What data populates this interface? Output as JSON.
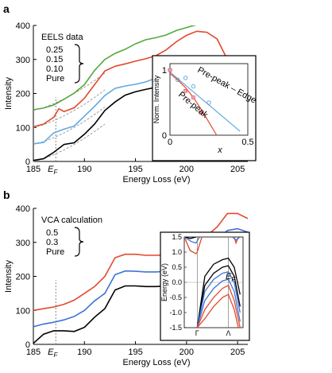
{
  "colors": {
    "green": "#56a83c",
    "red": "#e2492c",
    "blue": "#3f73d6",
    "lightblue": "#62a8e0",
    "black": "#000000",
    "gray": "#888888"
  },
  "chart_data": [
    {
      "type": "line",
      "panel": "a",
      "legend_title": "EELS data",
      "xlabel": "Energy Loss (eV)",
      "ylabel": "Intensity",
      "xlim": [
        185,
        206
      ],
      "ylim": [
        0,
        400
      ],
      "xticks": [
        "185",
        "190",
        "195",
        "200",
        "205"
      ],
      "xtick_values": [
        185,
        190,
        195,
        200,
        205
      ],
      "yticks": [
        "0",
        "100",
        "200",
        "300",
        "400"
      ],
      "ytick_values": [
        0,
        100,
        200,
        300,
        400
      ],
      "ef_label": "E",
      "ef_sub": "F",
      "ef_x": 187.2,
      "series": [
        {
          "name": "0.25",
          "color": "#56a83c",
          "x": [
            185,
            186,
            187,
            188,
            189,
            190,
            191,
            192,
            193,
            194,
            195,
            196,
            197,
            198,
            199,
            200,
            201
          ],
          "y": [
            152,
            157,
            166,
            183,
            201,
            226,
            268,
            300,
            318,
            330,
            346,
            358,
            364,
            372,
            385,
            394,
            402
          ]
        },
        {
          "name": "0.15",
          "color": "#e2492c",
          "x": [
            185,
            186,
            187,
            187.5,
            188,
            189,
            190,
            191,
            192,
            193,
            194,
            195,
            196,
            197,
            198,
            199,
            200,
            201,
            202,
            203,
            204,
            205
          ],
          "y": [
            102,
            110,
            130,
            155,
            147,
            158,
            186,
            226,
            266,
            280,
            287,
            295,
            302,
            311,
            328,
            352,
            371,
            383,
            380,
            360,
            300,
            265
          ]
        },
        {
          "name": "0.10",
          "color": "#62a8e0",
          "x": [
            185,
            186,
            187,
            188,
            189,
            190,
            191,
            192,
            193,
            194,
            195,
            196,
            197,
            198,
            199,
            200,
            201,
            202,
            203,
            204,
            205
          ],
          "y": [
            52,
            56,
            84,
            95,
            104,
            133,
            162,
            194,
            215,
            222,
            227,
            234,
            245,
            272,
            295,
            305,
            310,
            305,
            280,
            255,
            235
          ]
        },
        {
          "name": "Pure",
          "color": "#000000",
          "x": [
            185,
            186,
            187,
            188,
            189,
            190,
            191,
            192,
            193,
            194,
            195,
            196,
            197,
            198,
            199,
            200,
            201,
            202,
            203,
            204,
            205
          ],
          "y": [
            3,
            8,
            27,
            50,
            55,
            80,
            110,
            150,
            175,
            195,
            205,
            212,
            218,
            240,
            262,
            278,
            283,
            280,
            262,
            240,
            220
          ]
        }
      ],
      "dashed_backgrounds": [
        {
          "color": "#888888",
          "x": [
            185,
            186,
            187,
            188,
            189,
            190,
            191,
            192
          ],
          "y": [
            0,
            8,
            20,
            34,
            50,
            68,
            88,
            110
          ]
        },
        {
          "color": "#888888",
          "x": [
            185,
            186,
            187,
            188,
            189,
            190,
            191,
            192
          ],
          "y": [
            50,
            58,
            70,
            84,
            100,
            118,
            138,
            160
          ]
        },
        {
          "color": "#888888",
          "x": [
            185,
            186,
            187,
            188,
            189,
            190,
            191,
            192
          ],
          "y": [
            100,
            108,
            120,
            134,
            150,
            168,
            188,
            210
          ]
        },
        {
          "color": "#888888",
          "x": [
            185,
            186,
            187,
            188,
            189,
            190,
            191,
            192
          ],
          "y": [
            150,
            158,
            170,
            184,
            200,
            218,
            238,
            260
          ]
        }
      ],
      "inset": {
        "xlabel": "x",
        "ylabel": "Norm. Intensity",
        "xlim": [
          0,
          0.5
        ],
        "ylim": [
          0,
          1.1
        ],
        "xticks": [
          "0",
          "0.5"
        ],
        "xtick_values": [
          0,
          0.5
        ],
        "yticks": [
          "0",
          "1"
        ],
        "ytick_values": [
          0,
          1
        ],
        "series": [
          {
            "name": "Pre-peak – Edge",
            "color": "#3f73d6",
            "marker": "circle",
            "x": [
              0,
              0.05,
              0.1,
              0.15,
              0.25
            ],
            "y": [
              1.0,
              0.85,
              0.88,
              0.75,
              0.5
            ],
            "fit_x": [
              0,
              0.45
            ],
            "fit_y": [
              0.97,
              0.06
            ]
          },
          {
            "name": "Pre-peak",
            "color": "#e2492c",
            "marker": "square",
            "x": [
              0,
              0.1,
              0.15,
              0.2
            ],
            "y": [
              1.0,
              0.68,
              0.58,
              0.35
            ],
            "fit_x": [
              0,
              0.05,
              0.1,
              0.15,
              0.2,
              0.25,
              0.3
            ],
            "fit_y": [
              0.95,
              0.85,
              0.73,
              0.58,
              0.4,
              0.2,
              0.0
            ]
          }
        ]
      }
    },
    {
      "type": "line",
      "panel": "b",
      "legend_title": "VCA calculation",
      "xlabel": "Energy Loss (eV)",
      "ylabel": "Intensity",
      "xlim": [
        185,
        206
      ],
      "ylim": [
        0,
        400
      ],
      "xticks": [
        "185",
        "190",
        "195",
        "200",
        "205"
      ],
      "xtick_values": [
        185,
        190,
        195,
        200,
        205
      ],
      "yticks": [
        "0",
        "100",
        "200",
        "300",
        "400"
      ],
      "ytick_values": [
        0,
        100,
        200,
        300,
        400
      ],
      "ef_label": "E",
      "ef_sub": "F",
      "ef_x": 187.2,
      "series": [
        {
          "name": "0.5",
          "color": "#e2492c",
          "x": [
            185,
            186,
            187,
            188,
            189,
            190,
            191,
            192,
            193,
            194,
            195,
            196,
            197,
            198,
            199,
            200,
            201,
            202,
            203,
            204,
            205,
            206
          ],
          "y": [
            100,
            105,
            110,
            118,
            130,
            150,
            170,
            200,
            255,
            265,
            265,
            262,
            262,
            263,
            265,
            275,
            300,
            320,
            345,
            385,
            385,
            370
          ]
        },
        {
          "name": "0.3",
          "color": "#3f73d6",
          "x": [
            185,
            186,
            187,
            188,
            189,
            190,
            191,
            192,
            193,
            194,
            195,
            196,
            197,
            198,
            199,
            200,
            201,
            202,
            203,
            204,
            205,
            206
          ],
          "y": [
            52,
            60,
            65,
            72,
            82,
            100,
            128,
            150,
            205,
            216,
            215,
            213,
            213,
            215,
            218,
            228,
            250,
            280,
            305,
            335,
            340,
            330
          ]
        },
        {
          "name": "Pure",
          "color": "#000000",
          "x": [
            185,
            186,
            187,
            188,
            189,
            190,
            191,
            192,
            193,
            194,
            195,
            196,
            197,
            198,
            199,
            200,
            201,
            202,
            203,
            204,
            205,
            206
          ],
          "y": [
            3,
            30,
            40,
            40,
            38,
            50,
            80,
            105,
            160,
            172,
            172,
            170,
            170,
            172,
            175,
            185,
            205,
            235,
            265,
            290,
            295,
            285
          ]
        }
      ],
      "inset": {
        "xlabel": "",
        "ylabel": "Energy (eV)",
        "ylim": [
          -1.5,
          1.5
        ],
        "yticks": [
          "1.5",
          "1.0",
          "0.5",
          "0.0",
          "-0.5",
          "-1.0",
          "-1.5"
        ],
        "ytick_values": [
          1.5,
          1.0,
          0.5,
          0.0,
          -0.5,
          -1.0,
          -1.5
        ],
        "xticks": [
          "Γ",
          "Λ"
        ],
        "xtick_values": [
          0.22,
          0.75
        ],
        "ef_label": "E",
        "ef_sub": "F",
        "bands": [
          {
            "color": "#000000",
            "x": [
              0.22,
              0.35,
              0.5,
              0.65,
              0.75,
              0.85,
              0.95
            ],
            "y": [
              -1.5,
              0.2,
              0.6,
              0.75,
              0.8,
              0.5,
              -0.4
            ]
          },
          {
            "color": "#000000",
            "x": [
              0.22,
              0.35,
              0.5,
              0.65,
              0.75,
              0.85,
              0.95
            ],
            "y": [
              -1.5,
              -0.1,
              0.3,
              0.5,
              0.55,
              0.2,
              -0.8
            ]
          },
          {
            "color": "#3f73d6",
            "x": [
              0.22,
              0.35,
              0.5,
              0.65,
              0.75,
              0.85,
              0.95
            ],
            "y": [
              -1.5,
              -0.3,
              0.1,
              0.3,
              0.35,
              0.0,
              -1.0
            ]
          },
          {
            "color": "#3f73d6",
            "x": [
              0.22,
              0.35,
              0.5,
              0.65,
              0.75,
              0.85,
              0.95
            ],
            "y": [
              -1.5,
              -0.6,
              -0.2,
              0.05,
              0.1,
              -0.3,
              -1.3
            ]
          },
          {
            "color": "#e2492c",
            "x": [
              0.22,
              0.35,
              0.5,
              0.65,
              0.75,
              0.85,
              0.95
            ],
            "y": [
              -1.5,
              -0.9,
              -0.5,
              -0.2,
              -0.1,
              -0.6,
              -1.5
            ]
          },
          {
            "color": "#e2492c",
            "x": [
              0.22,
              0.35,
              0.5,
              0.65,
              0.75,
              0.85,
              0.92
            ],
            "y": [
              -1.5,
              -1.2,
              -0.8,
              -0.5,
              -0.4,
              -0.9,
              -1.5
            ]
          },
          {
            "color": "#e2492c",
            "x": [
              0.0,
              0.1,
              0.2,
              0.22,
              0.3
            ],
            "y": [
              1.5,
              1.05,
              0.95,
              1.0,
              1.5
            ]
          },
          {
            "color": "#3f73d6",
            "x": [
              0.0,
              0.12,
              0.2,
              0.26
            ],
            "y": [
              1.5,
              1.35,
              1.3,
              1.5
            ]
          },
          {
            "color": "#000000",
            "x": [
              0.02,
              0.1,
              0.2
            ],
            "y": [
              1.5,
              1.45,
              1.5
            ]
          },
          {
            "color": "#e2492c",
            "x": [
              0.85,
              0.88,
              0.92
            ],
            "y": [
              1.5,
              1.3,
              1.5
            ]
          },
          {
            "color": "#3f73d6",
            "x": [
              0.82,
              0.88,
              0.95
            ],
            "y": [
              1.5,
              1.4,
              1.5
            ]
          }
        ]
      }
    }
  ]
}
